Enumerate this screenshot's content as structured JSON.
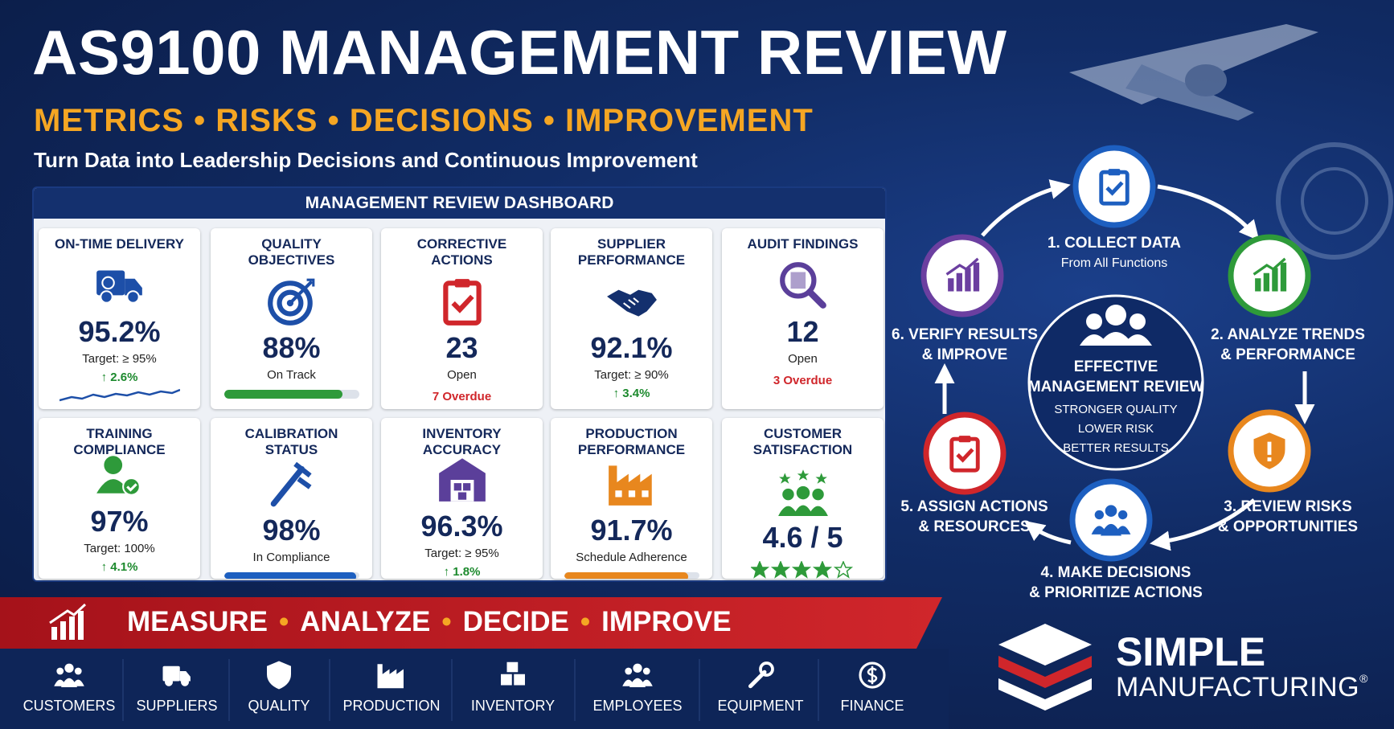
{
  "header": {
    "title": "AS9100 MANAGEMENT REVIEW",
    "subtitle": "METRICS • RISKS • DECISIONS • IMPROVEMENT",
    "tagline": "Turn Data into Leadership Decisions and Continuous Improvement"
  },
  "dashboard": {
    "title": "MANAGEMENT REVIEW DASHBOARD",
    "cards": [
      {
        "title": "ON-TIME DELIVERY",
        "value": "95.2%",
        "note": "Target: ≥ 95%",
        "trend": "↑ 2.6%"
      },
      {
        "title": "QUALITY OBJECTIVES",
        "value": "88%",
        "note": "On Track",
        "bar_color": "#2e9a3a"
      },
      {
        "title": "CORRECTIVE ACTIONS",
        "value": "23",
        "note": "Open",
        "alert": "7 Overdue"
      },
      {
        "title": "SUPPLIER PERFORMANCE",
        "value": "92.1%",
        "note": "Target: ≥ 90%",
        "trend": "↑ 3.4%"
      },
      {
        "title": "AUDIT FINDINGS",
        "value": "12",
        "note": "Open",
        "alert": "3 Overdue"
      },
      {
        "title": "TRAINING COMPLIANCE",
        "value": "97%",
        "note": "Target: 100%",
        "trend": "↑ 4.1%",
        "bar_color": "#2e9a3a"
      },
      {
        "title": "CALIBRATION STATUS",
        "value": "98%",
        "note": "In Compliance",
        "bar_color": "#1d5fc0"
      },
      {
        "title": "INVENTORY ACCURACY",
        "value": "96.3%",
        "note": "Target: ≥ 95%",
        "trend": "↑ 1.8%"
      },
      {
        "title": "PRODUCTION PERFORMANCE",
        "value": "91.7%",
        "note": "Schedule Adherence",
        "bar_color": "#e8871e"
      },
      {
        "title": "CUSTOMER SATISFACTION",
        "value": "4.6 / 5"
      }
    ]
  },
  "cycle": {
    "center": {
      "title_lines": [
        "EFFECTIVE",
        "MANAGEMENT REVIEW"
      ],
      "points": [
        "STRONGER QUALITY",
        "LOWER RISK",
        "BETTER RESULTS"
      ]
    },
    "steps": [
      {
        "lines": [
          "1. COLLECT DATA"
        ],
        "sub": "From All Functions",
        "color": "#1d5fc0"
      },
      {
        "lines": [
          "2. ANALYZE TRENDS",
          "& PERFORMANCE"
        ],
        "color": "#2e9a3a"
      },
      {
        "lines": [
          "3. REVIEW RISKS",
          "& OPPORTUNITIES"
        ],
        "color": "#e8871e"
      },
      {
        "lines": [
          "4. MAKE DECISIONS",
          "& PRIORITIZE ACTIONS"
        ],
        "color": "#1d5fc0"
      },
      {
        "lines": [
          "5. ASSIGN ACTIONS",
          "& RESOURCES"
        ],
        "color": "#d0262b"
      },
      {
        "lines": [
          "6. VERIFY RESULTS",
          "& IMPROVE"
        ],
        "color": "#6b3fa0"
      }
    ]
  },
  "banner": {
    "words": [
      "MEASURE",
      "ANALYZE",
      "DECIDE",
      "IMPROVE"
    ],
    "separator": "•"
  },
  "footer": {
    "items": [
      "CUSTOMERS",
      "SUPPLIERS",
      "QUALITY",
      "PRODUCTION",
      "INVENTORY",
      "EMPLOYEES",
      "EQUIPMENT",
      "FINANCE"
    ]
  },
  "logo": {
    "name": "SIMPLE",
    "sub": "MANUFACTURING",
    "mark": "®"
  }
}
